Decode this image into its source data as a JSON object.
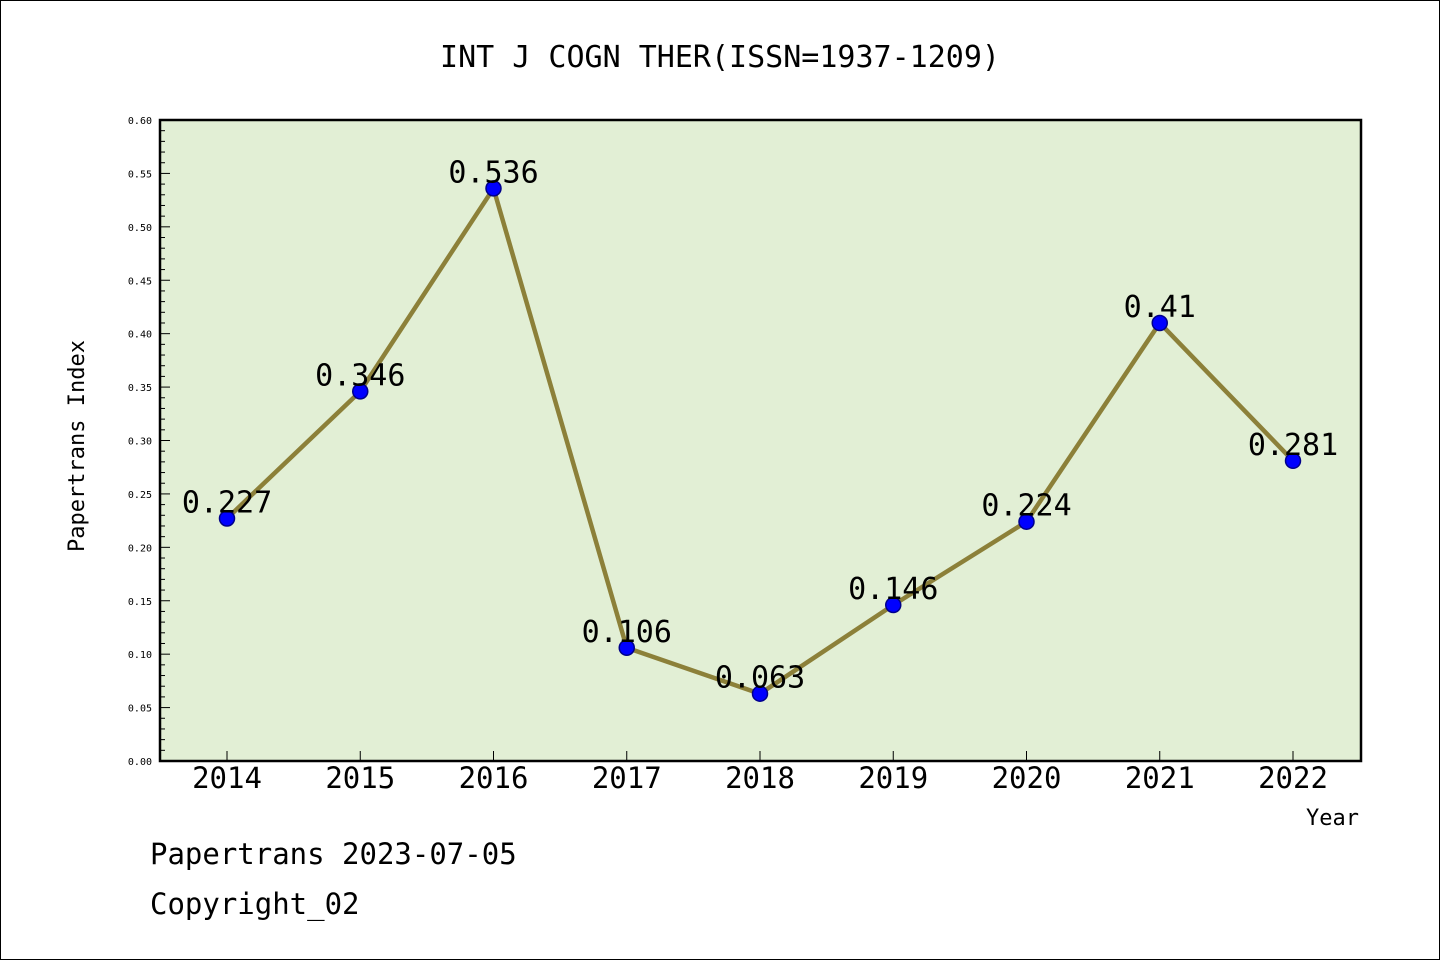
{
  "chart_data": {
    "type": "line",
    "title": "INT J COGN THER(ISSN=1937-1209)",
    "xlabel": "Year",
    "ylabel": "Papertrans Index",
    "categories": [
      "2014",
      "2015",
      "2016",
      "2017",
      "2018",
      "2019",
      "2020",
      "2021",
      "2022"
    ],
    "values": [
      0.227,
      0.346,
      0.536,
      0.106,
      0.063,
      0.146,
      0.224,
      0.41,
      0.281
    ],
    "value_labels": [
      "0.227",
      "0.346",
      "0.536",
      "0.106",
      "0.063",
      "0.146",
      "0.224",
      "0.41",
      "0.281"
    ],
    "ylim": [
      0,
      0.6
    ],
    "yticks": [
      "0.00",
      "0.05",
      "0.10",
      "0.15",
      "0.20",
      "0.25",
      "0.30",
      "0.35",
      "0.40",
      "0.45",
      "0.50",
      "0.55",
      "0.60"
    ],
    "grid": false,
    "legend": "none",
    "colors": {
      "plot_background": "#e2efd5",
      "line": "#8c8039",
      "marker_fill": "#0000ff",
      "marker_edge": "#00008b"
    }
  },
  "footer": {
    "date_line": "Papertrans 2023-07-05",
    "copyright_line": "Copyright_02"
  }
}
